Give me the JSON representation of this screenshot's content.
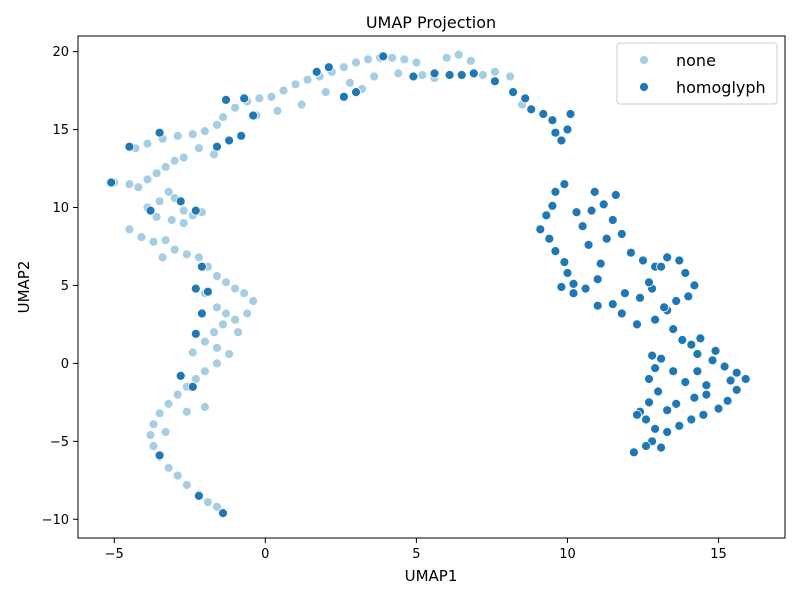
{
  "chart_data": {
    "type": "scatter",
    "title": "UMAP Projection",
    "xlabel": "UMAP1",
    "ylabel": "UMAP2",
    "xlim": [
      -6.2,
      17.2
    ],
    "ylim": [
      -11.2,
      21.0
    ],
    "xticks": [
      -5,
      0,
      5,
      10,
      15
    ],
    "yticks": [
      -10,
      -5,
      0,
      5,
      10,
      15,
      20
    ],
    "xtick_labels": [
      "−5",
      "0",
      "5",
      "10",
      "15"
    ],
    "ytick_labels": [
      "−10",
      "−5",
      "0",
      "5",
      "10",
      "15",
      "20"
    ],
    "grid": false,
    "legend_position": "top-right",
    "series": [
      {
        "name": "none",
        "color": "#a6cee3",
        "points": [
          [
            -5.0,
            11.6
          ],
          [
            -4.5,
            11.5
          ],
          [
            -4.2,
            11.3
          ],
          [
            -3.9,
            11.8
          ],
          [
            -3.6,
            12.2
          ],
          [
            -3.3,
            12.6
          ],
          [
            -3.0,
            13.0
          ],
          [
            -2.7,
            13.2
          ],
          [
            -3.2,
            11.0
          ],
          [
            -3.5,
            10.4
          ],
          [
            -3.9,
            10.0
          ],
          [
            -3.6,
            9.4
          ],
          [
            -3.1,
            9.2
          ],
          [
            -2.7,
            9.8
          ],
          [
            -2.4,
            9.5
          ],
          [
            -2.1,
            9.7
          ],
          [
            -4.5,
            8.6
          ],
          [
            -4.1,
            8.1
          ],
          [
            -3.7,
            7.8
          ],
          [
            -3.3,
            7.9
          ],
          [
            -3.0,
            7.3
          ],
          [
            -2.6,
            7.0
          ],
          [
            -2.2,
            6.8
          ],
          [
            -1.9,
            6.2
          ],
          [
            -1.6,
            5.6
          ],
          [
            -1.3,
            5.2
          ],
          [
            -1.0,
            4.8
          ],
          [
            -0.7,
            4.5
          ],
          [
            -0.4,
            4.0
          ],
          [
            -0.6,
            3.2
          ],
          [
            -1.0,
            2.8
          ],
          [
            -1.4,
            2.5
          ],
          [
            -1.7,
            2.0
          ],
          [
            -2.0,
            1.4
          ],
          [
            -1.6,
            1.0
          ],
          [
            -1.2,
            0.6
          ],
          [
            -1.6,
            0.0
          ],
          [
            -2.0,
            -0.5
          ],
          [
            -2.3,
            -1.0
          ],
          [
            -2.6,
            -1.5
          ],
          [
            -2.9,
            -2.0
          ],
          [
            -3.2,
            -2.6
          ],
          [
            -3.5,
            -3.2
          ],
          [
            -3.7,
            -3.9
          ],
          [
            -3.8,
            -4.6
          ],
          [
            -3.7,
            -5.3
          ],
          [
            -3.5,
            -6.0
          ],
          [
            -3.2,
            -6.7
          ],
          [
            -2.9,
            -7.2
          ],
          [
            -2.6,
            -7.8
          ],
          [
            -2.2,
            -8.4
          ],
          [
            -1.9,
            -8.9
          ],
          [
            -1.6,
            -9.2
          ],
          [
            -4.3,
            13.8
          ],
          [
            -3.9,
            14.1
          ],
          [
            -3.4,
            14.4
          ],
          [
            -2.9,
            14.6
          ],
          [
            -2.4,
            14.7
          ],
          [
            -2.0,
            14.9
          ],
          [
            -1.6,
            15.3
          ],
          [
            -2.2,
            13.8
          ],
          [
            -1.7,
            13.4
          ],
          [
            -1.4,
            15.8
          ],
          [
            -1.0,
            16.4
          ],
          [
            -0.6,
            16.8
          ],
          [
            -0.2,
            17.0
          ],
          [
            0.2,
            17.1
          ],
          [
            0.6,
            17.5
          ],
          [
            1.0,
            17.9
          ],
          [
            1.4,
            18.2
          ],
          [
            1.8,
            18.4
          ],
          [
            2.2,
            18.7
          ],
          [
            2.6,
            19.0
          ],
          [
            3.0,
            19.3
          ],
          [
            3.4,
            19.5
          ],
          [
            3.8,
            19.6
          ],
          [
            4.2,
            19.6
          ],
          [
            4.6,
            19.5
          ],
          [
            5.0,
            19.3
          ],
          [
            3.6,
            18.4
          ],
          [
            4.4,
            18.6
          ],
          [
            5.2,
            18.5
          ],
          [
            5.6,
            18.3
          ],
          [
            6.0,
            19.6
          ],
          [
            6.4,
            19.8
          ],
          [
            6.8,
            19.4
          ],
          [
            7.2,
            18.5
          ],
          [
            7.6,
            18.7
          ],
          [
            8.1,
            18.4
          ],
          [
            8.5,
            16.6
          ],
          [
            -2.7,
            9.0
          ],
          [
            -3.0,
            10.6
          ],
          [
            -3.4,
            6.8
          ],
          [
            -2.0,
            4.5
          ],
          [
            -1.6,
            3.6
          ],
          [
            -0.9,
            2.0
          ],
          [
            -1.3,
            3.2
          ],
          [
            -2.4,
            0.7
          ],
          [
            -2.0,
            -2.8
          ],
          [
            -2.6,
            -3.1
          ],
          [
            -3.3,
            -4.4
          ],
          [
            -0.3,
            15.9
          ],
          [
            0.4,
            16.2
          ],
          [
            1.2,
            16.6
          ],
          [
            2.0,
            17.4
          ],
          [
            2.8,
            18.0
          ],
          [
            3.2,
            17.6
          ]
        ]
      },
      {
        "name": "homoglyph",
        "color": "#1f78b4",
        "points": [
          [
            -5.1,
            11.6
          ],
          [
            -3.8,
            9.8
          ],
          [
            -2.8,
            10.4
          ],
          [
            -2.3,
            9.8
          ],
          [
            -3.5,
            14.8
          ],
          [
            -4.5,
            13.9
          ],
          [
            -2.1,
            6.2
          ],
          [
            -2.3,
            4.8
          ],
          [
            -1.9,
            4.6
          ],
          [
            -2.1,
            3.2
          ],
          [
            -2.3,
            1.9
          ],
          [
            -2.4,
            -1.5
          ],
          [
            -3.5,
            -5.9
          ],
          [
            -2.2,
            -8.5
          ],
          [
            -1.4,
            -9.6
          ],
          [
            -2.8,
            -0.8
          ],
          [
            -1.6,
            13.9
          ],
          [
            -1.2,
            14.3
          ],
          [
            -0.8,
            14.6
          ],
          [
            -0.4,
            15.9
          ],
          [
            -1.3,
            16.9
          ],
          [
            -0.7,
            17.0
          ],
          [
            1.7,
            18.7
          ],
          [
            2.1,
            19.0
          ],
          [
            3.0,
            17.4
          ],
          [
            2.6,
            17.1
          ],
          [
            3.9,
            19.7
          ],
          [
            4.9,
            18.4
          ],
          [
            5.6,
            18.6
          ],
          [
            6.1,
            18.5
          ],
          [
            6.5,
            18.5
          ],
          [
            6.9,
            18.6
          ],
          [
            7.6,
            18.1
          ],
          [
            8.2,
            17.4
          ],
          [
            8.6,
            17.0
          ],
          [
            8.8,
            16.3
          ],
          [
            9.2,
            16.0
          ],
          [
            9.5,
            15.6
          ],
          [
            9.6,
            14.8
          ],
          [
            9.8,
            14.3
          ],
          [
            10.0,
            15.0
          ],
          [
            10.1,
            16.0
          ],
          [
            9.9,
            11.5
          ],
          [
            9.6,
            11.0
          ],
          [
            9.5,
            10.1
          ],
          [
            9.3,
            9.5
          ],
          [
            9.1,
            8.6
          ],
          [
            9.4,
            8.0
          ],
          [
            9.6,
            7.2
          ],
          [
            9.9,
            6.5
          ],
          [
            10.0,
            5.8
          ],
          [
            10.2,
            5.1
          ],
          [
            10.6,
            4.8
          ],
          [
            11.0,
            5.4
          ],
          [
            11.1,
            6.4
          ],
          [
            10.7,
            7.6
          ],
          [
            10.5,
            8.8
          ],
          [
            10.8,
            9.8
          ],
          [
            11.2,
            10.2
          ],
          [
            11.5,
            9.2
          ],
          [
            11.8,
            8.3
          ],
          [
            12.1,
            7.1
          ],
          [
            12.5,
            6.6
          ],
          [
            12.9,
            6.2
          ],
          [
            13.3,
            6.8
          ],
          [
            13.7,
            6.6
          ],
          [
            13.9,
            5.8
          ],
          [
            14.2,
            5.0
          ],
          [
            14.0,
            4.3
          ],
          [
            13.6,
            4.0
          ],
          [
            13.3,
            3.4
          ],
          [
            12.9,
            2.8
          ],
          [
            12.3,
            2.5
          ],
          [
            11.8,
            3.2
          ],
          [
            11.5,
            3.8
          ],
          [
            11.0,
            3.7
          ],
          [
            11.9,
            4.5
          ],
          [
            12.4,
            4.2
          ],
          [
            12.8,
            4.8
          ],
          [
            13.2,
            3.6
          ],
          [
            13.5,
            2.2
          ],
          [
            13.8,
            1.5
          ],
          [
            14.1,
            1.2
          ],
          [
            14.4,
            1.6
          ],
          [
            14.3,
            0.6
          ],
          [
            14.8,
            0.2
          ],
          [
            15.2,
            -0.2
          ],
          [
            15.6,
            -0.6
          ],
          [
            15.9,
            -1.0
          ],
          [
            15.6,
            -1.7
          ],
          [
            15.3,
            -2.4
          ],
          [
            15.0,
            -2.9
          ],
          [
            14.5,
            -3.3
          ],
          [
            14.1,
            -3.6
          ],
          [
            13.7,
            -4.0
          ],
          [
            13.3,
            -4.4
          ],
          [
            12.9,
            -4.2
          ],
          [
            12.6,
            -3.6
          ],
          [
            12.4,
            -3.1
          ],
          [
            12.7,
            -2.5
          ],
          [
            13.0,
            -1.8
          ],
          [
            12.7,
            -1.0
          ],
          [
            12.9,
            -0.3
          ],
          [
            12.8,
            0.5
          ],
          [
            13.1,
            0.3
          ],
          [
            13.5,
            -0.5
          ],
          [
            13.9,
            -1.2
          ],
          [
            14.3,
            -0.5
          ],
          [
            14.6,
            -1.4
          ],
          [
            14.2,
            -2.2
          ],
          [
            13.6,
            -2.6
          ],
          [
            13.3,
            -3.0
          ],
          [
            12.8,
            -5.0
          ],
          [
            12.2,
            -5.7
          ],
          [
            12.6,
            -5.3
          ],
          [
            13.1,
            -5.4
          ],
          [
            12.3,
            -3.3
          ],
          [
            14.6,
            -2.0
          ],
          [
            15.4,
            -1.1
          ],
          [
            14.9,
            0.8
          ],
          [
            13.1,
            6.2
          ],
          [
            12.7,
            5.2
          ],
          [
            11.3,
            8.0
          ],
          [
            10.3,
            9.7
          ],
          [
            10.9,
            11.0
          ],
          [
            11.6,
            10.8
          ],
          [
            10.2,
            4.5
          ],
          [
            9.8,
            4.9
          ]
        ]
      }
    ]
  }
}
